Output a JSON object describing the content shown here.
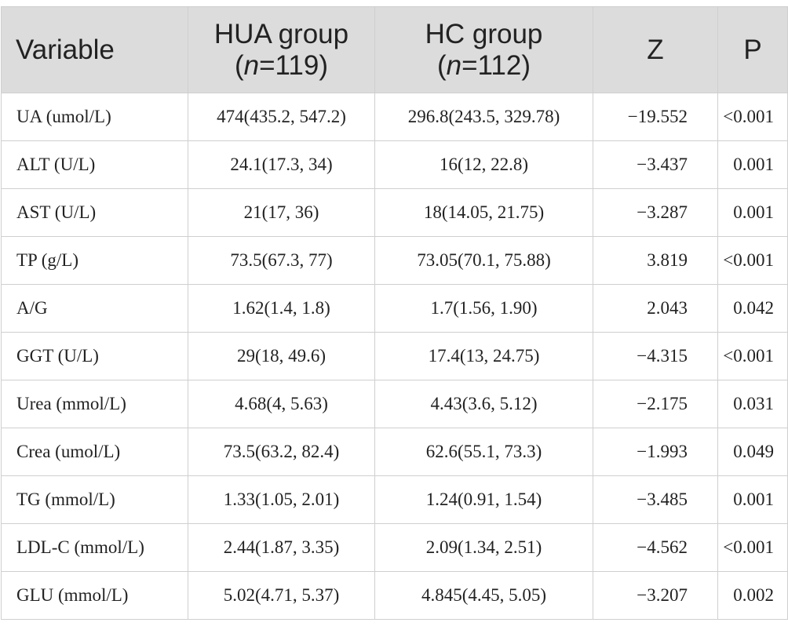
{
  "table": {
    "headers": {
      "variable": "Variable",
      "hua_line1": "HUA group",
      "hua_n_prefix": "(",
      "hua_n": "n",
      "hua_n_suffix": "=119)",
      "hc_line1": "HC group",
      "hc_n_prefix": "(",
      "hc_n": "n",
      "hc_n_suffix": "=112)",
      "z": "Z",
      "p": "P"
    },
    "rows": [
      {
        "variable": "UA (umol/L)",
        "hua": "474(435.2, 547.2)",
        "hc": "296.8(243.5, 329.78)",
        "z": "−19.552",
        "p": "<0.001"
      },
      {
        "variable": "ALT (U/L)",
        "hua": "24.1(17.3, 34)",
        "hc": "16(12, 22.8)",
        "z": "−3.437",
        "p": "0.001"
      },
      {
        "variable": "AST (U/L)",
        "hua": "21(17, 36)",
        "hc": "18(14.05, 21.75)",
        "z": "−3.287",
        "p": "0.001"
      },
      {
        "variable": "TP (g/L)",
        "hua": "73.5(67.3, 77)",
        "hc": "73.05(70.1, 75.88)",
        "z": "3.819",
        "p": "<0.001"
      },
      {
        "variable": "A/G",
        "hua": "1.62(1.4, 1.8)",
        "hc": "1.7(1.56, 1.90)",
        "z": "2.043",
        "p": "0.042"
      },
      {
        "variable": "GGT (U/L)",
        "hua": "29(18, 49.6)",
        "hc": "17.4(13, 24.75)",
        "z": "−4.315",
        "p": "<0.001"
      },
      {
        "variable": "Urea (mmol/L)",
        "hua": "4.68(4, 5.63)",
        "hc": "4.43(3.6, 5.12)",
        "z": "−2.175",
        "p": "0.031"
      },
      {
        "variable": "Crea (umol/L)",
        "hua": "73.5(63.2, 82.4)",
        "hc": "62.6(55.1, 73.3)",
        "z": "−1.993",
        "p": "0.049"
      },
      {
        "variable": "TG (mmol/L)",
        "hua": "1.33(1.05, 2.01)",
        "hc": "1.24(0.91, 1.54)",
        "z": "−3.485",
        "p": "0.001"
      },
      {
        "variable": "LDL-C (mmol/L)",
        "hua": "2.44(1.87, 3.35)",
        "hc": "2.09(1.34, 2.51)",
        "z": "−4.562",
        "p": "<0.001"
      },
      {
        "variable": "GLU (mmol/L)",
        "hua": "5.02(4.71, 5.37)",
        "hc": "4.845(4.45, 5.05)",
        "z": "−3.207",
        "p": "0.002"
      }
    ]
  }
}
